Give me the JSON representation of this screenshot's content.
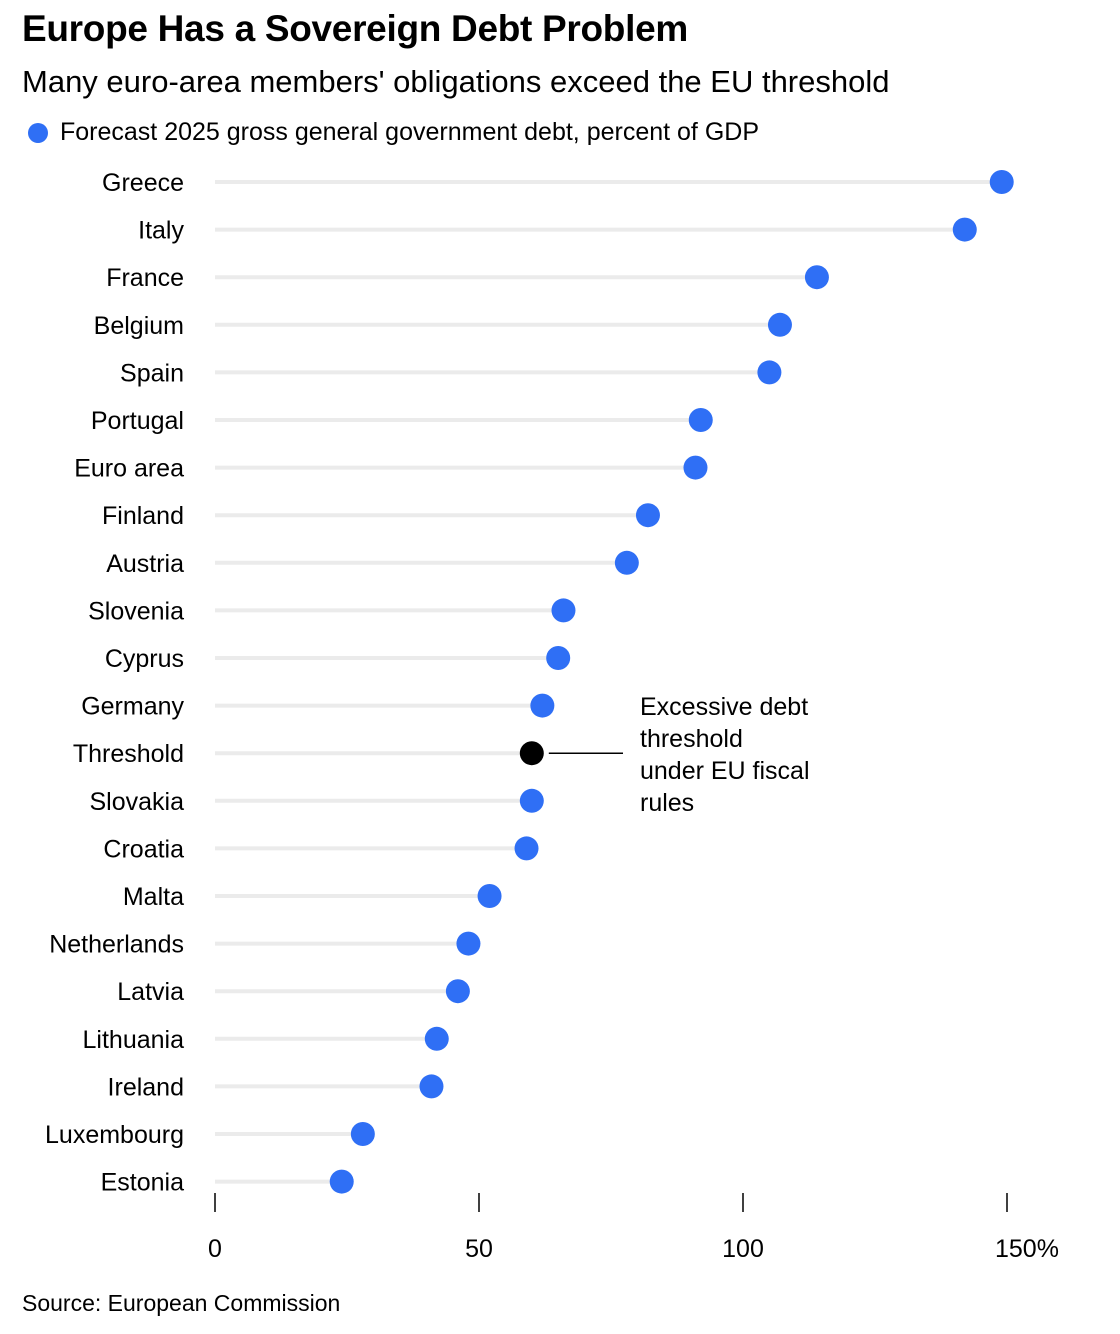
{
  "chart_data": {
    "type": "scatter",
    "title": "Europe Has a Sovereign Debt Problem",
    "subtitle": "Many euro-area members' obligations exceed the EU threshold",
    "series": [
      {
        "name": "Forecast 2025 gross general government debt, percent of GDP",
        "color": "#2f6ff5"
      }
    ],
    "categories": [
      "Greece",
      "Italy",
      "France",
      "Belgium",
      "Spain",
      "Portugal",
      "Euro area",
      "Finland",
      "Austria",
      "Slovenia",
      "Cyprus",
      "Germany",
      "Threshold",
      "Slovakia",
      "Croatia",
      "Malta",
      "Netherlands",
      "Latvia",
      "Lithuania",
      "Ireland",
      "Luxembourg",
      "Estonia"
    ],
    "values": [
      149,
      142,
      114,
      107,
      105,
      92,
      91,
      82,
      78,
      66,
      65,
      62,
      60,
      60,
      59,
      52,
      48,
      46,
      42,
      41,
      28,
      24
    ],
    "highlight": {
      "category": "Threshold",
      "color": "#000000"
    },
    "xlim": [
      0,
      150
    ],
    "xticks": [
      0,
      50,
      100,
      150
    ],
    "xtick_labels": [
      "0",
      "50",
      "100",
      "150%"
    ],
    "annotation": {
      "lines": [
        "Excessive debt",
        "threshold",
        "under EU fiscal",
        "rules"
      ],
      "target": "Threshold"
    },
    "grid": false,
    "legend_position": "top-left",
    "source": "Source: European Commission"
  }
}
